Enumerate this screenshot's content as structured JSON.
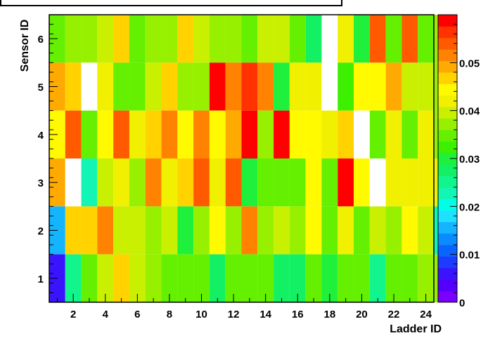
{
  "chart_data": {
    "type": "heatmap",
    "title": "",
    "xlabel": "Ladder ID",
    "ylabel": "Sensor ID",
    "xlim": [
      0.5,
      24.5
    ],
    "ylim": [
      0.5,
      6.5
    ],
    "x_tick_labels": [
      "2",
      "4",
      "6",
      "8",
      "10",
      "12",
      "14",
      "16",
      "18",
      "20",
      "22",
      "24"
    ],
    "y_tick_labels": [
      "1",
      "2",
      "3",
      "4",
      "5",
      "6"
    ],
    "colorbar_tick_labels": [
      "0",
      "0.01",
      "0.02",
      "0.03",
      "0.04",
      "0.05"
    ],
    "zlim": [
      0,
      0.06
    ],
    "palette": [
      "#7a00ff",
      "#5500ff",
      "#3a14ff",
      "#1e3cff",
      "#0a64ff",
      "#0a8cff",
      "#14b4ff",
      "#1ee1ff",
      "#00ffe6",
      "#12f5b4",
      "#12f58c",
      "#14f064",
      "#1ef03c",
      "#3cf000",
      "#64f000",
      "#96f000",
      "#c8f000",
      "#f0f000",
      "#fffa00",
      "#ffd200",
      "#ffaa00",
      "#ff8200",
      "#ff5a00",
      "#ff3200",
      "#ff0000"
    ],
    "values": [
      [
        0.034,
        0.038,
        0.036,
        0.039,
        0.047,
        0.034,
        0.038,
        0.036,
        0.047,
        0.039,
        0.038,
        0.036,
        0.035,
        0.039,
        0.039,
        0.034,
        0.028,
        null,
        0.041,
        0.029,
        0.053,
        0.034,
        0.053,
        0.034,
        0.038
      ],
      [
        0.048,
        0.047,
        null,
        0.041,
        0.035,
        0.034,
        0.039,
        0.047,
        0.038,
        0.036,
        0.058,
        0.052,
        0.057,
        0.051,
        0.031,
        0.041,
        0.041,
        null,
        0.033,
        0.044,
        0.044,
        0.049,
        0.039,
        0.039,
        0.038
      ],
      [
        0.045,
        0.054,
        0.034,
        0.045,
        0.054,
        0.042,
        0.047,
        0.052,
        0.045,
        0.052,
        0.045,
        0.049,
        0.058,
        0.036,
        0.058,
        0.045,
        0.045,
        0.041,
        0.047,
        null,
        0.034,
        0.043,
        0.034,
        0.041,
        0.036
      ],
      [
        0.048,
        null,
        0.023,
        0.04,
        0.043,
        0.036,
        0.052,
        0.041,
        0.047,
        0.054,
        0.041,
        0.055,
        0.031,
        0.035,
        0.035,
        0.035,
        0.045,
        0.034,
        0.06,
        0.044,
        null,
        0.043,
        0.043,
        0.043,
        0.043
      ],
      [
        0.015,
        0.046,
        0.046,
        0.052,
        0.04,
        0.04,
        0.038,
        0.04,
        0.031,
        0.036,
        0.045,
        0.037,
        0.052,
        0.036,
        0.039,
        0.036,
        0.045,
        0.034,
        0.042,
        0.035,
        0.039,
        0.037,
        0.045,
        0.039,
        0.023
      ],
      [
        0.005,
        0.025,
        0.034,
        0.04,
        0.047,
        0.04,
        0.038,
        0.035,
        0.035,
        0.035,
        0.028,
        0.034,
        0.034,
        0.034,
        0.028,
        0.028,
        0.034,
        0.031,
        0.034,
        0.034,
        0.025,
        0.034,
        0.034,
        0.036,
        0.036
      ]
    ]
  }
}
